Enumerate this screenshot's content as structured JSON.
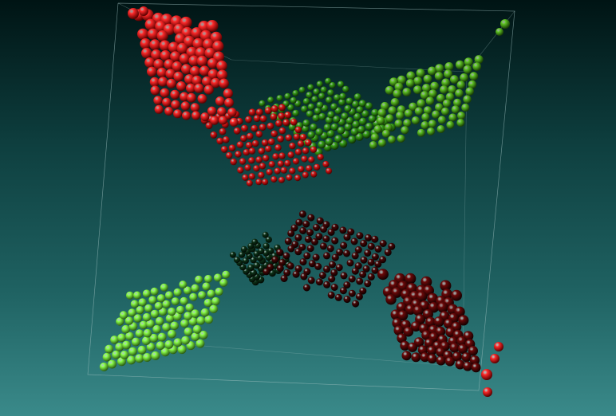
{
  "scene": {
    "background_top": "#001414",
    "background_bottom": "#3a8a8a",
    "box_color": "#9fbfbf",
    "clusters": [
      {
        "name": "red-top-left-lobe",
        "color": "#ff2a2a",
        "shade": "#5a0000"
      },
      {
        "name": "red-center-sheet",
        "color": "#e01818",
        "shade": "#4a0000"
      },
      {
        "name": "green-top-right-lobe",
        "color": "#5fc424",
        "shade": "#183d05"
      },
      {
        "name": "green-center-sheet",
        "color": "#3aa618",
        "shade": "#0d2e04"
      },
      {
        "name": "lime-bottom-left-lobe",
        "color": "#8cff4a",
        "shade": "#2b5e12"
      },
      {
        "name": "dark-red-bottom-right-lobe",
        "color": "#6b0808",
        "shade": "#150000"
      },
      {
        "name": "dark-red-center-sheet",
        "color": "#4a0606",
        "shade": "#0a0000"
      },
      {
        "name": "dark-green-center-sheet",
        "color": "#0d3318",
        "shade": "#010a03"
      }
    ]
  }
}
